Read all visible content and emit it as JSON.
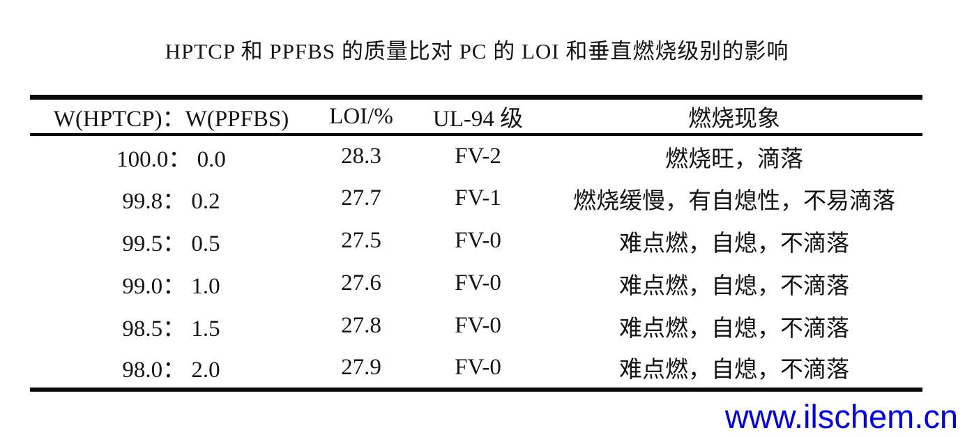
{
  "title": "HPTCP 和 PPFBS 的质量比对 PC 的 LOI 和垂直燃烧级别的影响",
  "table": {
    "headers": [
      "W(HPTCP)：W(PPFBS)",
      "LOI/%",
      "UL-94 级",
      "燃烧现象"
    ],
    "rows": [
      [
        "100.0： 0.0",
        "28.3",
        "FV-2",
        "燃烧旺，滴落"
      ],
      [
        "99.8： 0.2",
        "27.7",
        "FV-1",
        "燃烧缓慢，有自熄性，不易滴落"
      ],
      [
        "99.5： 0.5",
        "27.5",
        "FV-0",
        "难点燃，自熄，不滴落"
      ],
      [
        "99.0： 1.0",
        "27.6",
        "FV-0",
        "难点燃，自熄，不滴落"
      ],
      [
        "98.5： 1.5",
        "27.8",
        "FV-0",
        "难点燃，自熄，不滴落"
      ],
      [
        "98.0： 2.0",
        "27.9",
        "FV-0",
        "难点燃，自熄，不滴落"
      ]
    ]
  },
  "watermark": {
    "text": "www.ilschem.cn",
    "color": "#0000ee"
  },
  "colors": {
    "text": "#141414",
    "rule": "#0a0a0a",
    "background": "#ffffff"
  }
}
